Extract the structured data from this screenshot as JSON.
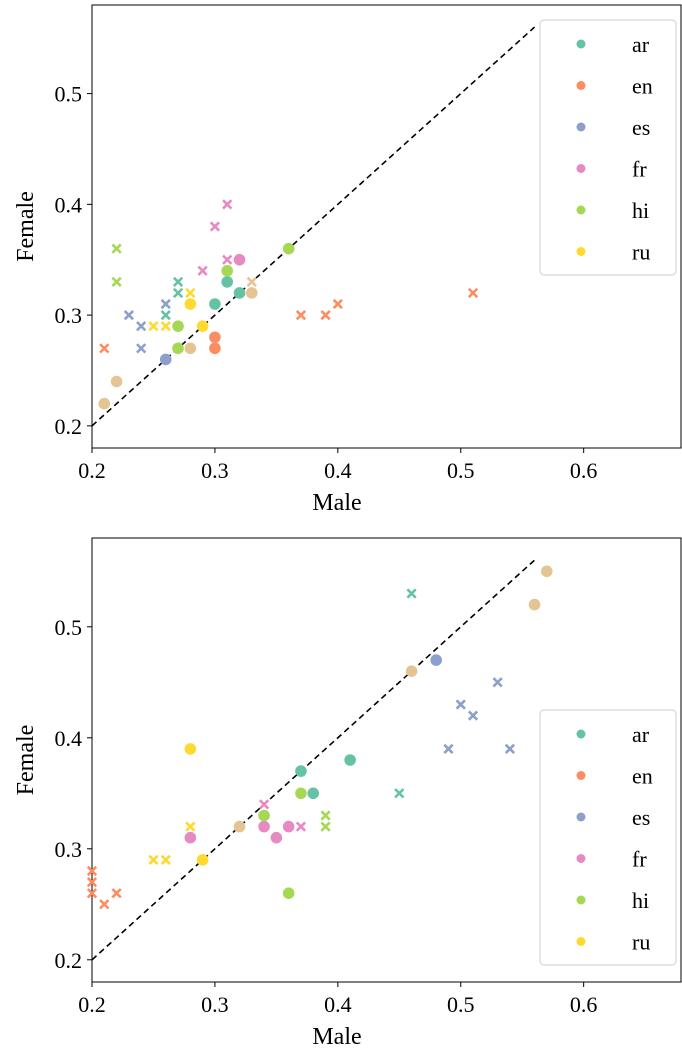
{
  "chart_data": [
    {
      "type": "scatter",
      "xlabel": "Male",
      "ylabel": "Female",
      "xlim": [
        0.2,
        0.68
      ],
      "ylim": [
        0.18,
        0.58
      ],
      "xticks": [
        "0.2",
        "0.3",
        "0.4",
        "0.5",
        "0.6"
      ],
      "yticks": [
        "0.2",
        "0.3",
        "0.4",
        "0.5"
      ],
      "diagonal": {
        "style": "dashed",
        "from": [
          0.2,
          0.2
        ],
        "to": [
          0.56,
          0.56
        ]
      },
      "legend": {
        "placement": "top-right"
      },
      "series": [
        {
          "name": "ar",
          "color": "#66c2a5",
          "circles": [
            [
              0.3,
              0.31
            ],
            [
              0.31,
              0.33
            ],
            [
              0.32,
              0.32
            ]
          ],
          "crosses": [
            [
              0.26,
              0.3
            ],
            [
              0.27,
              0.32
            ],
            [
              0.27,
              0.33
            ]
          ]
        },
        {
          "name": "en",
          "color": "#fc8d62",
          "circles": [
            [
              0.3,
              0.27
            ],
            [
              0.3,
              0.28
            ]
          ],
          "crosses": [
            [
              0.21,
              0.27
            ],
            [
              0.37,
              0.3
            ],
            [
              0.39,
              0.3
            ],
            [
              0.4,
              0.31
            ],
            [
              0.51,
              0.32
            ]
          ]
        },
        {
          "name": "es",
          "color": "#8da0cb",
          "circles": [
            [
              0.26,
              0.26
            ]
          ],
          "crosses": [
            [
              0.23,
              0.3
            ],
            [
              0.24,
              0.29
            ],
            [
              0.24,
              0.27
            ],
            [
              0.26,
              0.31
            ]
          ]
        },
        {
          "name": "fr",
          "color": "#e78ac3",
          "circles": [
            [
              0.32,
              0.35
            ]
          ],
          "crosses": [
            [
              0.29,
              0.34
            ],
            [
              0.3,
              0.38
            ],
            [
              0.31,
              0.4
            ],
            [
              0.31,
              0.35
            ]
          ]
        },
        {
          "name": "hi",
          "color": "#a6d854",
          "circles": [
            [
              0.27,
              0.29
            ],
            [
              0.27,
              0.27
            ],
            [
              0.31,
              0.34
            ],
            [
              0.36,
              0.36
            ]
          ],
          "crosses": [
            [
              0.22,
              0.36
            ],
            [
              0.22,
              0.33
            ]
          ]
        },
        {
          "name": "ru",
          "color": "#ffd92f",
          "circles": [
            [
              0.28,
              0.31
            ],
            [
              0.29,
              0.29
            ]
          ],
          "crosses": [
            [
              0.25,
              0.29
            ],
            [
              0.26,
              0.29
            ],
            [
              0.28,
              0.32
            ]
          ]
        },
        {
          "name": "",
          "color": "#e5c494",
          "circles": [
            [
              0.21,
              0.22
            ],
            [
              0.22,
              0.24
            ],
            [
              0.28,
              0.27
            ],
            [
              0.33,
              0.32
            ]
          ],
          "crosses": [
            [
              0.33,
              0.33
            ]
          ]
        }
      ]
    },
    {
      "type": "scatter",
      "xlabel": "Male",
      "ylabel": "Female",
      "xlim": [
        0.2,
        0.68
      ],
      "ylim": [
        0.18,
        0.58
      ],
      "xticks": [
        "0.2",
        "0.3",
        "0.4",
        "0.5",
        "0.6"
      ],
      "yticks": [
        "0.2",
        "0.3",
        "0.4",
        "0.5"
      ],
      "diagonal": {
        "style": "dashed",
        "from": [
          0.2,
          0.2
        ],
        "to": [
          0.56,
          0.56
        ]
      },
      "legend": {
        "placement": "lower-right"
      },
      "series": [
        {
          "name": "ar",
          "color": "#66c2a5",
          "circles": [
            [
              0.37,
              0.37
            ],
            [
              0.38,
              0.35
            ],
            [
              0.41,
              0.38
            ]
          ],
          "crosses": [
            [
              0.45,
              0.35
            ],
            [
              0.46,
              0.53
            ]
          ]
        },
        {
          "name": "en",
          "color": "#fc8d62",
          "circles": [],
          "crosses": [
            [
              0.2,
              0.28
            ],
            [
              0.2,
              0.27
            ],
            [
              0.2,
              0.26
            ],
            [
              0.21,
              0.25
            ],
            [
              0.22,
              0.26
            ]
          ]
        },
        {
          "name": "es",
          "color": "#8da0cb",
          "circles": [
            [
              0.48,
              0.47
            ]
          ],
          "crosses": [
            [
              0.49,
              0.39
            ],
            [
              0.5,
              0.43
            ],
            [
              0.51,
              0.42
            ],
            [
              0.53,
              0.45
            ],
            [
              0.54,
              0.39
            ]
          ]
        },
        {
          "name": "fr",
          "color": "#e78ac3",
          "circles": [
            [
              0.28,
              0.31
            ],
            [
              0.34,
              0.32
            ],
            [
              0.35,
              0.31
            ],
            [
              0.36,
              0.32
            ]
          ],
          "crosses": [
            [
              0.34,
              0.34
            ],
            [
              0.37,
              0.32
            ]
          ]
        },
        {
          "name": "hi",
          "color": "#a6d854",
          "circles": [
            [
              0.34,
              0.33
            ],
            [
              0.36,
              0.26
            ],
            [
              0.37,
              0.35
            ]
          ],
          "crosses": [
            [
              0.39,
              0.33
            ],
            [
              0.39,
              0.32
            ]
          ]
        },
        {
          "name": "ru",
          "color": "#ffd92f",
          "circles": [
            [
              0.28,
              0.39
            ],
            [
              0.29,
              0.29
            ]
          ],
          "crosses": [
            [
              0.25,
              0.29
            ],
            [
              0.26,
              0.29
            ],
            [
              0.28,
              0.32
            ]
          ]
        },
        {
          "name": "",
          "color": "#e5c494",
          "circles": [
            [
              0.32,
              0.32
            ],
            [
              0.46,
              0.46
            ],
            [
              0.56,
              0.52
            ],
            [
              0.57,
              0.55
            ]
          ],
          "crosses": []
        }
      ]
    }
  ]
}
